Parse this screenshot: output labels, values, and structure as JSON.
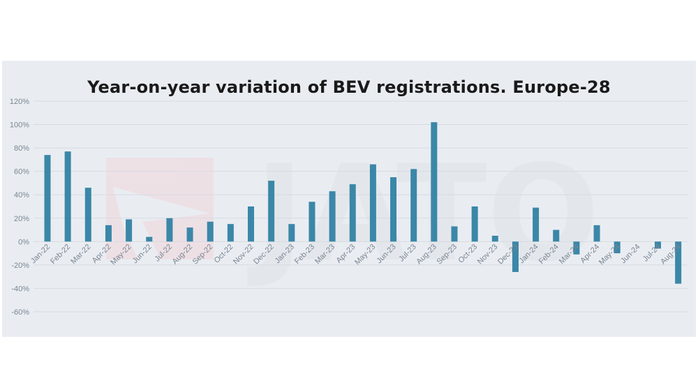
{
  "chart_data": {
    "type": "bar",
    "title": "Year-on-year variation of BEV registrations. Europe-28",
    "xlabel": "",
    "ylabel": "",
    "ylim": [
      -60,
      120
    ],
    "yticks": [
      "120%",
      "100%",
      "80%",
      "60%",
      "40%",
      "20%",
      "0%",
      "-20%",
      "-40%",
      "-60%"
    ],
    "grid": true,
    "watermark": "JATO",
    "bar_color": "#3b87a8",
    "categories": [
      "Jan-22",
      "Feb-22",
      "Mar-22",
      "Apr-22",
      "May-22",
      "Jun-22",
      "Jul-22",
      "Aug-22",
      "Sep-22",
      "Oct-22",
      "Nov-22",
      "Dec-22",
      "Jan-23",
      "Feb-23",
      "Mar-23",
      "Apr-23",
      "May-23",
      "Jun-23",
      "Jul-23",
      "Aug-23",
      "Sep-23",
      "Oct-23",
      "Nov-23",
      "Dec-23",
      "Jan-24",
      "Feb-24",
      "Mar-24",
      "Apr-24",
      "May-24",
      "Jun-24",
      "Jul-24",
      "Aug-24"
    ],
    "values": [
      74,
      77,
      46,
      14,
      19,
      4,
      20,
      12,
      17,
      15,
      30,
      52,
      15,
      34,
      43,
      49,
      66,
      55,
      62,
      102,
      13,
      30,
      5,
      -26,
      29,
      10,
      -11,
      14,
      -10,
      0,
      -6,
      -36
    ]
  }
}
